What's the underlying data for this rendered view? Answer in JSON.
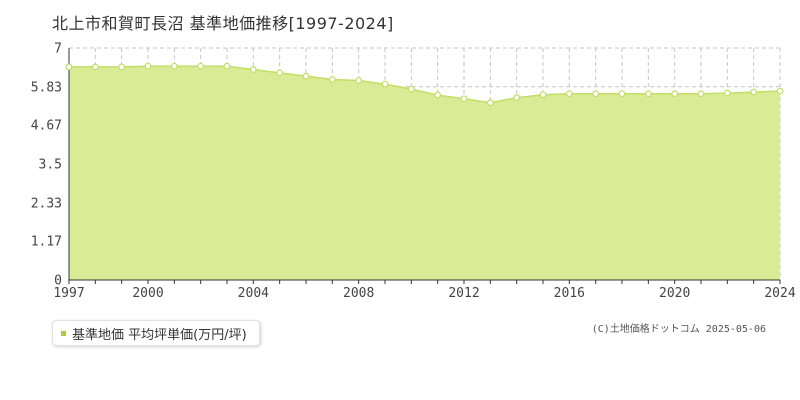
{
  "title": "北上市和賀町長沼 基準地価推移[1997-2024]",
  "legend": {
    "label": "基準地価 平均坪単価(万円/坪)"
  },
  "copyright": "(C)土地価格ドットコム 2025-05-06",
  "colors": {
    "fill": "#d9ec95",
    "line": "#c2de66",
    "marker_fill": "#ffffff",
    "grid": "#c6c6c6",
    "legend_swatch": "#a6cf3e"
  },
  "chart_data": {
    "type": "area",
    "x": [
      1997,
      1998,
      1999,
      2000,
      2001,
      2002,
      2003,
      2004,
      2005,
      2006,
      2007,
      2008,
      2009,
      2010,
      2011,
      2012,
      2013,
      2014,
      2015,
      2016,
      2017,
      2018,
      2019,
      2020,
      2021,
      2022,
      2023,
      2024
    ],
    "series": [
      {
        "name": "基準地価 平均坪単価(万円/坪)",
        "values": [
          6.43,
          6.43,
          6.43,
          6.45,
          6.45,
          6.45,
          6.45,
          6.35,
          6.25,
          6.15,
          6.05,
          6.02,
          5.91,
          5.76,
          5.58,
          5.47,
          5.35,
          5.5,
          5.59,
          5.62,
          5.62,
          5.62,
          5.62,
          5.62,
          5.62,
          5.64,
          5.67,
          5.7
        ]
      }
    ],
    "xlim": [
      1997,
      2024
    ],
    "ylim": [
      0,
      7
    ],
    "x_ticks": [
      "1997",
      "2000",
      "2004",
      "2008",
      "2012",
      "2016",
      "2020",
      "2024"
    ],
    "y_ticks": [
      "0",
      "1.17",
      "2.33",
      "3.5",
      "4.67",
      "5.83",
      "7"
    ],
    "grid": true,
    "legend_position": "bottom-left"
  }
}
